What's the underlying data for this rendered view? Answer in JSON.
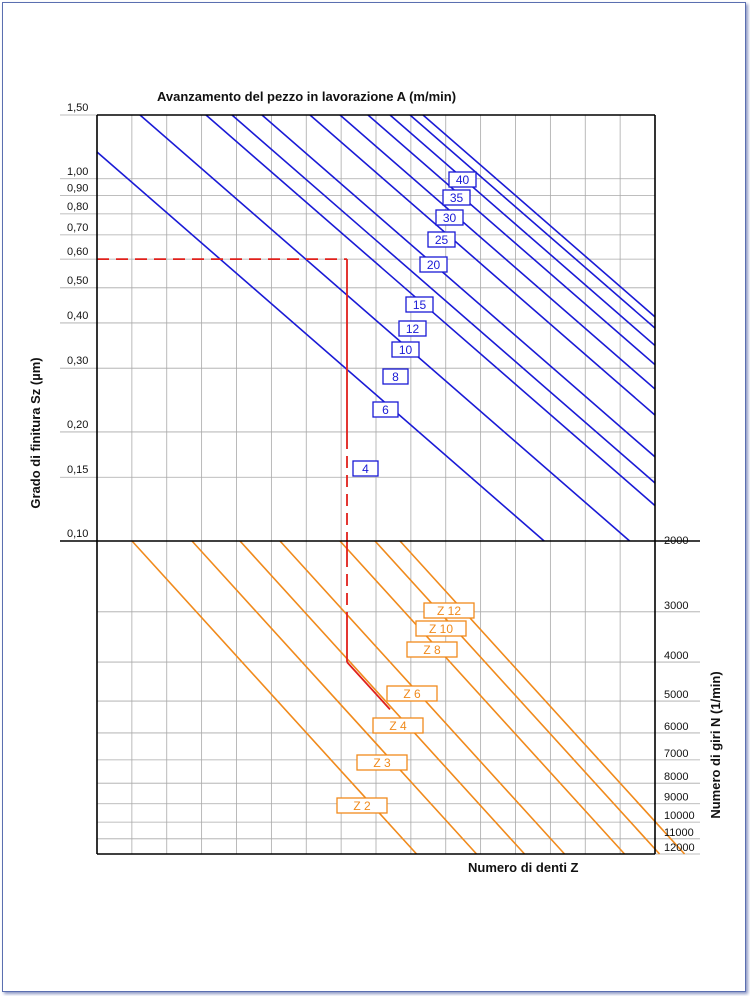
{
  "chart_data": {
    "type": "line",
    "title": "Avanzamento del pezzo in lavorazione A (m/min)",
    "ylabel_left": "Grado di finitura Sz (µm)",
    "ylabel_right": "Numero di giri N (1/min)",
    "xlabel": "Numero di denti Z",
    "y_scale_left": "log",
    "grid": true,
    "left_ticks": [
      "1,50",
      "1,00",
      "0,90",
      "0,80",
      "0,70",
      "0,60",
      "0,50",
      "0,40",
      "0,30",
      "0,20",
      "0,15",
      "0,10"
    ],
    "left_tick_values": [
      1.5,
      1.0,
      0.9,
      0.8,
      0.7,
      0.6,
      0.5,
      0.4,
      0.3,
      0.2,
      0.15,
      0.1
    ],
    "right_ticks": [
      "2000",
      "3000",
      "4000",
      "5000",
      "6000",
      "7000",
      "8000",
      "9000",
      "10000",
      "11000",
      "12000"
    ],
    "right_tick_values": [
      2000,
      3000,
      4000,
      5000,
      6000,
      7000,
      8000,
      9000,
      10000,
      11000,
      12000
    ],
    "feed_series": [
      {
        "name": "4"
      },
      {
        "name": "6"
      },
      {
        "name": "8"
      },
      {
        "name": "10"
      },
      {
        "name": "12"
      },
      {
        "name": "15"
      },
      {
        "name": "20"
      },
      {
        "name": "25"
      },
      {
        "name": "30"
      },
      {
        "name": "35"
      },
      {
        "name": "40"
      }
    ],
    "teeth_series": [
      {
        "name": "Z 2"
      },
      {
        "name": "Z 3"
      },
      {
        "name": "Z 4"
      },
      {
        "name": "Z 6"
      },
      {
        "name": "Z 8"
      },
      {
        "name": "Z 10"
      },
      {
        "name": "Z 12"
      }
    ],
    "example": {
      "Sz": 0.6,
      "N": 4000
    },
    "colors": {
      "feed": "#1a1ad6",
      "teeth": "#f08a1c",
      "example": "#e0201b",
      "grid": "#a9a9a9"
    }
  }
}
